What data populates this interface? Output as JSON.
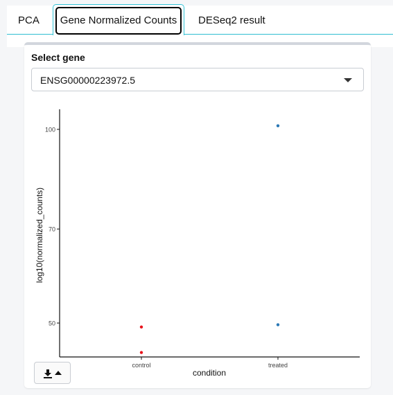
{
  "tabs": [
    {
      "label": "PCA"
    },
    {
      "label": "Gene Normalized Counts",
      "active": true
    },
    {
      "label": "DESeq2 result"
    }
  ],
  "gene_select": {
    "label": "Select gene",
    "value": "ENSG00000223972.5"
  },
  "download_button": {
    "icons": [
      "download-icon",
      "caret-up-icon"
    ]
  },
  "chart_data": {
    "type": "scatter",
    "xlabel": "condition",
    "ylabel": "log10(normalized_counts)",
    "categories": [
      "control",
      "treated"
    ],
    "yticks": [
      50,
      70,
      100
    ],
    "series": [
      {
        "category": "control",
        "color": "#e8141c",
        "values": [
          49.3,
          45.0
        ]
      },
      {
        "category": "treated",
        "color": "#2a78b5",
        "values": [
          101.3,
          49.7
        ]
      }
    ]
  }
}
